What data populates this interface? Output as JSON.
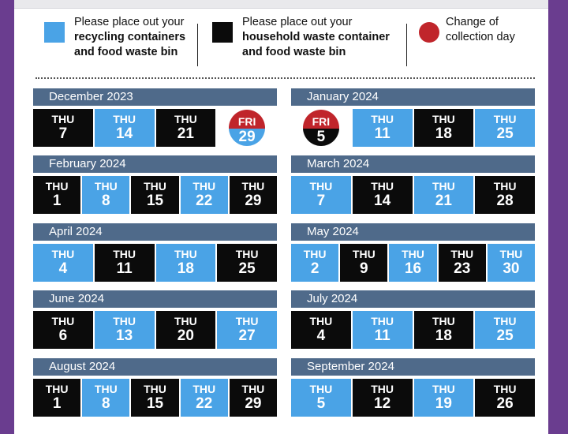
{
  "legend": {
    "recycling_line1": "Please place out your",
    "recycling_line2": "recycling containers",
    "recycling_line3": "and food waste bin",
    "household_line1": "Please place out your",
    "household_line2": "household waste container",
    "household_line3": "and food waste bin",
    "change_line1": "Change of",
    "change_line2": "collection day",
    "colors": {
      "recycling": "#4aa3e6",
      "household": "#0b0b0b",
      "change": "#c0252b",
      "header": "#4f6a8a"
    }
  },
  "months": [
    {
      "name": "December 2023",
      "days": [
        {
          "dow": "THU",
          "num": "7",
          "type": "household"
        },
        {
          "dow": "THU",
          "num": "14",
          "type": "recycling"
        },
        {
          "dow": "THU",
          "num": "21",
          "type": "household"
        },
        {
          "dow": "FRI",
          "num": "29",
          "type": "recycling",
          "changed": true
        }
      ]
    },
    {
      "name": "January 2024",
      "days": [
        {
          "dow": "FRI",
          "num": "5",
          "type": "household",
          "changed": true
        },
        {
          "dow": "THU",
          "num": "11",
          "type": "recycling"
        },
        {
          "dow": "THU",
          "num": "18",
          "type": "household"
        },
        {
          "dow": "THU",
          "num": "25",
          "type": "recycling"
        }
      ]
    },
    {
      "name": "February 2024",
      "days": [
        {
          "dow": "THU",
          "num": "1",
          "type": "household"
        },
        {
          "dow": "THU",
          "num": "8",
          "type": "recycling"
        },
        {
          "dow": "THU",
          "num": "15",
          "type": "household"
        },
        {
          "dow": "THU",
          "num": "22",
          "type": "recycling"
        },
        {
          "dow": "THU",
          "num": "29",
          "type": "household"
        }
      ]
    },
    {
      "name": "March 2024",
      "days": [
        {
          "dow": "THU",
          "num": "7",
          "type": "recycling"
        },
        {
          "dow": "THU",
          "num": "14",
          "type": "household"
        },
        {
          "dow": "THU",
          "num": "21",
          "type": "recycling"
        },
        {
          "dow": "THU",
          "num": "28",
          "type": "household"
        }
      ]
    },
    {
      "name": "April 2024",
      "days": [
        {
          "dow": "THU",
          "num": "4",
          "type": "recycling"
        },
        {
          "dow": "THU",
          "num": "11",
          "type": "household"
        },
        {
          "dow": "THU",
          "num": "18",
          "type": "recycling"
        },
        {
          "dow": "THU",
          "num": "25",
          "type": "household"
        }
      ]
    },
    {
      "name": "May 2024",
      "days": [
        {
          "dow": "THU",
          "num": "2",
          "type": "recycling"
        },
        {
          "dow": "THU",
          "num": "9",
          "type": "household"
        },
        {
          "dow": "THU",
          "num": "16",
          "type": "recycling"
        },
        {
          "dow": "THU",
          "num": "23",
          "type": "household"
        },
        {
          "dow": "THU",
          "num": "30",
          "type": "recycling"
        }
      ]
    },
    {
      "name": "June 2024",
      "days": [
        {
          "dow": "THU",
          "num": "6",
          "type": "household"
        },
        {
          "dow": "THU",
          "num": "13",
          "type": "recycling"
        },
        {
          "dow": "THU",
          "num": "20",
          "type": "household"
        },
        {
          "dow": "THU",
          "num": "27",
          "type": "recycling"
        }
      ]
    },
    {
      "name": "July 2024",
      "days": [
        {
          "dow": "THU",
          "num": "4",
          "type": "household"
        },
        {
          "dow": "THU",
          "num": "11",
          "type": "recycling"
        },
        {
          "dow": "THU",
          "num": "18",
          "type": "household"
        },
        {
          "dow": "THU",
          "num": "25",
          "type": "recycling"
        }
      ]
    },
    {
      "name": "August 2024",
      "days": [
        {
          "dow": "THU",
          "num": "1",
          "type": "household"
        },
        {
          "dow": "THU",
          "num": "8",
          "type": "recycling"
        },
        {
          "dow": "THU",
          "num": "15",
          "type": "household"
        },
        {
          "dow": "THU",
          "num": "22",
          "type": "recycling"
        },
        {
          "dow": "THU",
          "num": "29",
          "type": "household"
        }
      ]
    },
    {
      "name": "September 2024",
      "days": [
        {
          "dow": "THU",
          "num": "5",
          "type": "recycling"
        },
        {
          "dow": "THU",
          "num": "12",
          "type": "household"
        },
        {
          "dow": "THU",
          "num": "19",
          "type": "recycling"
        },
        {
          "dow": "THU",
          "num": "26",
          "type": "household"
        }
      ]
    }
  ]
}
